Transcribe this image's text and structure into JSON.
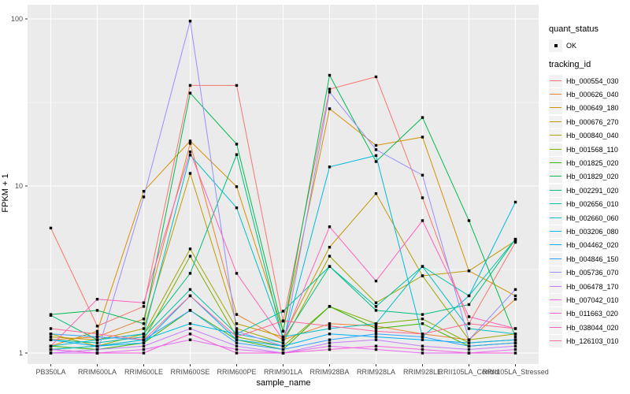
{
  "figure": {
    "background": "#FFFFFF",
    "panel_bg": "#EBEBEB",
    "grid_color": "#FFFFFF",
    "axis_text_color": "#4D4D4D",
    "title_color": "#000000",
    "point_color": "#000000"
  },
  "chart_data": {
    "type": "line",
    "title": "",
    "xlabel": "sample_name",
    "ylabel": "FPKM + 1",
    "y_scale": "log10",
    "ylim": [
      1,
      110
    ],
    "y_ticks": [
      1,
      10,
      100
    ],
    "grid": "on",
    "legend_position": "right",
    "categories": [
      "PB350LA",
      "RRIM600LA",
      "RRIM600LE",
      "RRIM600SE",
      "RRIM600PE",
      "RRIM901LA",
      "RRIM928BA",
      "RRIM928LA",
      "RRIM928LE",
      "RRII105LA_Control",
      "RRII105LA_Stressed"
    ],
    "series": [
      {
        "name": "Hb_000554_030",
        "color": "#F8766D",
        "values": [
          5.6,
          1.45,
          1.9,
          40,
          40,
          1.55,
          38,
          45,
          8.5,
          1.5,
          4.6
        ]
      },
      {
        "name": "Hb_000626_040",
        "color": "#EA8331",
        "values": [
          1.2,
          1.25,
          1.6,
          18.0,
          1.7,
          1.2,
          1.5,
          1.45,
          1.3,
          1.2,
          2.1
        ]
      },
      {
        "name": "Hb_000649_180",
        "color": "#D89000",
        "values": [
          1.1,
          1.35,
          9.3,
          18.6,
          9.9,
          1.35,
          29,
          17.5,
          19.6,
          3.1,
          2.2
        ]
      },
      {
        "name": "Hb_000676_270",
        "color": "#C09B00",
        "values": [
          1.25,
          1.2,
          1.4,
          11.9,
          1.5,
          1.25,
          4.3,
          9.0,
          2.9,
          3.1,
          4.7
        ]
      },
      {
        "name": "Hb_000840_040",
        "color": "#A3A500",
        "values": [
          1.3,
          1.1,
          1.3,
          4.2,
          1.4,
          1.15,
          3.8,
          2.0,
          2.9,
          1.2,
          1.3
        ]
      },
      {
        "name": "Hb_001568_110",
        "color": "#7CAE00",
        "values": [
          1.05,
          1.1,
          1.2,
          3.8,
          1.25,
          1.1,
          1.9,
          1.5,
          1.6,
          1.15,
          1.2
        ]
      },
      {
        "name": "Hb_001825_020",
        "color": "#39B600",
        "values": [
          1.1,
          1.05,
          1.15,
          1.8,
          1.2,
          1.05,
          1.9,
          1.4,
          1.5,
          1.1,
          1.15
        ]
      },
      {
        "name": "Hb_001829_020",
        "color": "#00BB4E",
        "values": [
          1.7,
          1.8,
          1.5,
          36,
          17.8,
          1.35,
          46,
          14,
          25.7,
          6.2,
          1.25
        ]
      },
      {
        "name": "Hb_002291_020",
        "color": "#00BF7D",
        "values": [
          1.68,
          1.2,
          1.3,
          3.0,
          15.4,
          1.2,
          3.3,
          1.8,
          1.7,
          1.95,
          4.8
        ]
      },
      {
        "name": "Hb_002656_010",
        "color": "#00C1A3",
        "values": [
          1.2,
          1.15,
          1.25,
          2.4,
          1.3,
          1.78,
          3.3,
          1.9,
          3.3,
          2.2,
          4.8
        ]
      },
      {
        "name": "Hb_002660_060",
        "color": "#00BFC4",
        "values": [
          1.1,
          1.2,
          1.3,
          15.3,
          7.4,
          1.25,
          1.4,
          1.5,
          3.3,
          1.4,
          1.3
        ]
      },
      {
        "name": "Hb_003206_080",
        "color": "#00BAE0",
        "values": [
          1.05,
          1.1,
          1.2,
          1.5,
          1.3,
          1.15,
          13,
          15.2,
          1.25,
          2.2,
          8.0
        ]
      },
      {
        "name": "Hb_004462_020",
        "color": "#00B0F6",
        "values": [
          1.2,
          1.1,
          1.15,
          2.2,
          1.2,
          1.1,
          1.3,
          1.25,
          1.2,
          1.15,
          1.2
        ]
      },
      {
        "name": "Hb_004846_150",
        "color": "#35A2FF",
        "values": [
          1.3,
          1.25,
          1.2,
          1.8,
          1.15,
          1.05,
          1.2,
          1.3,
          1.25,
          1.1,
          1.15
        ]
      },
      {
        "name": "Hb_005736_070",
        "color": "#9590FF",
        "values": [
          1.05,
          1.0,
          8.6,
          97,
          1.35,
          1.1,
          36.5,
          16.5,
          11.6,
          1.2,
          2.4
        ]
      },
      {
        "name": "Hb_006478_170",
        "color": "#C77CFF",
        "values": [
          1.0,
          1.05,
          1.1,
          1.4,
          1.1,
          1.0,
          1.15,
          1.2,
          1.1,
          1.05,
          1.1
        ]
      },
      {
        "name": "Hb_007042_010",
        "color": "#E76BF3",
        "values": [
          1.0,
          1.0,
          1.05,
          1.2,
          1.05,
          1.0,
          1.1,
          1.05,
          1.0,
          1.0,
          1.05
        ]
      },
      {
        "name": "Hb_011663_020",
        "color": "#FA62DB",
        "values": [
          1.05,
          1.0,
          1.0,
          1.3,
          1.0,
          1.0,
          1.05,
          1.1,
          1.05,
          1.0,
          1.0
        ]
      },
      {
        "name": "Hb_038044_020",
        "color": "#FF62BC",
        "values": [
          1.1,
          2.1,
          2.0,
          16,
          3.0,
          1.2,
          5.7,
          2.7,
          6.2,
          1.65,
          1.4
        ]
      },
      {
        "name": "Hb_126103_010",
        "color": "#FF6A98",
        "values": [
          1.4,
          1.3,
          1.2,
          2.2,
          1.25,
          1.56,
          1.45,
          1.35,
          1.3,
          1.5,
          1.4
        ]
      }
    ],
    "legend": {
      "quant_status_title": "quant_status",
      "quant_status_items": [
        {
          "label": "OK"
        }
      ],
      "tracking_title": "tracking_id"
    }
  }
}
